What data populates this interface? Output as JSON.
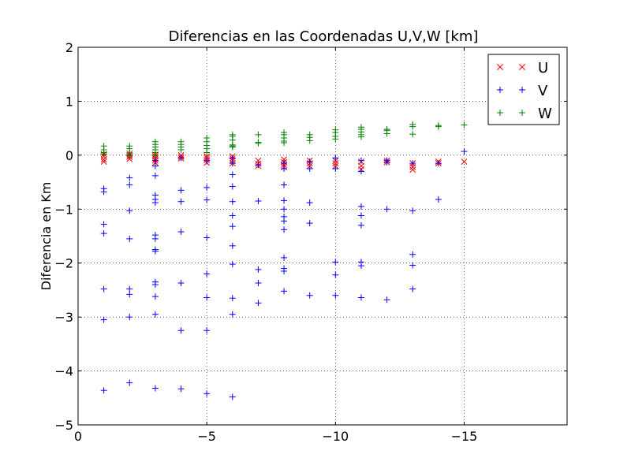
{
  "chart_data": {
    "type": "scatter",
    "title": "Diferencias en las Coordenadas U,V,W [km]",
    "xlabel": "",
    "ylabel": "Diferencia en Km",
    "xlim": [
      0,
      -19
    ],
    "ylim": [
      -5,
      2
    ],
    "xticks": [
      0,
      -5,
      -10,
      -15
    ],
    "xtick_labels": [
      "0",
      "−5",
      "−10",
      "−15"
    ],
    "yticks": [
      -5,
      -4,
      -3,
      -2,
      -1,
      0,
      1,
      2
    ],
    "ytick_labels": [
      "−5",
      "−4",
      "−3",
      "−2",
      "−1",
      "0",
      "1",
      "2"
    ],
    "grid": true,
    "legend_position": "top-right",
    "series": [
      {
        "name": "U",
        "marker": "x",
        "color": "#ff0000",
        "points": [
          [
            -1,
            -0.02
          ],
          [
            -1,
            -0.08
          ],
          [
            -1,
            -0.12
          ],
          [
            -1,
            0.02
          ],
          [
            -2,
            -0.03
          ],
          [
            -2,
            -0.07
          ],
          [
            -2,
            0.03
          ],
          [
            -2,
            0.0
          ],
          [
            -3,
            -0.02
          ],
          [
            -3,
            -0.06
          ],
          [
            -3,
            -0.1
          ],
          [
            -3,
            -0.14
          ],
          [
            -3,
            0.01
          ],
          [
            -4,
            -0.03
          ],
          [
            -4,
            -0.06
          ],
          [
            -4,
            0.0
          ],
          [
            -5,
            -0.05
          ],
          [
            -5,
            -0.09
          ],
          [
            -5,
            -0.14
          ],
          [
            -5,
            -0.02
          ],
          [
            -6,
            -0.06
          ],
          [
            -6,
            -0.1
          ],
          [
            -6,
            -0.15
          ],
          [
            -6,
            -0.02
          ],
          [
            -7,
            -0.1
          ],
          [
            -7,
            -0.16
          ],
          [
            -7,
            -0.2
          ],
          [
            -8,
            -0.08
          ],
          [
            -8,
            -0.13
          ],
          [
            -8,
            -0.18
          ],
          [
            -8,
            -0.22
          ],
          [
            -9,
            -0.1
          ],
          [
            -9,
            -0.15
          ],
          [
            -9,
            -0.2
          ],
          [
            -10,
            -0.1
          ],
          [
            -10,
            -0.15
          ],
          [
            -10,
            -0.2
          ],
          [
            -11,
            -0.12
          ],
          [
            -11,
            -0.2
          ],
          [
            -11,
            -0.26
          ],
          [
            -12,
            -0.1
          ],
          [
            -12,
            -0.13
          ],
          [
            -13,
            -0.15
          ],
          [
            -13,
            -0.22
          ],
          [
            -13,
            -0.27
          ],
          [
            -14,
            -0.12
          ],
          [
            -14,
            -0.15
          ],
          [
            -15,
            -0.12
          ]
        ]
      },
      {
        "name": "V",
        "marker": "+",
        "color": "#0000ff",
        "points": [
          [
            -1,
            -0.62
          ],
          [
            -1,
            -0.68
          ],
          [
            -1,
            -1.28
          ],
          [
            -1,
            -1.45
          ],
          [
            -1,
            -2.48
          ],
          [
            -1,
            -3.05
          ],
          [
            -1,
            -4.36
          ],
          [
            -1,
            0.02
          ],
          [
            -2,
            -0.42
          ],
          [
            -2,
            -0.55
          ],
          [
            -2,
            -1.03
          ],
          [
            -2,
            -1.55
          ],
          [
            -2,
            -2.48
          ],
          [
            -2,
            -2.58
          ],
          [
            -2,
            -3.0
          ],
          [
            -2,
            -4.22
          ],
          [
            -2,
            0.0
          ],
          [
            -3,
            -0.38
          ],
          [
            -3,
            -0.74
          ],
          [
            -3,
            -0.82
          ],
          [
            -3,
            -0.88
          ],
          [
            -3,
            -1.48
          ],
          [
            -3,
            -1.55
          ],
          [
            -3,
            -1.75
          ],
          [
            -3,
            -1.78
          ],
          [
            -3,
            -2.35
          ],
          [
            -3,
            -2.4
          ],
          [
            -3,
            -2.62
          ],
          [
            -3,
            -2.95
          ],
          [
            -3,
            -4.32
          ],
          [
            -3,
            -0.1
          ],
          [
            -3,
            -0.2
          ],
          [
            -4,
            -0.65
          ],
          [
            -4,
            -0.86
          ],
          [
            -4,
            -1.42
          ],
          [
            -4,
            -2.37
          ],
          [
            -4,
            -3.25
          ],
          [
            -4,
            -4.33
          ],
          [
            -4,
            -0.05
          ],
          [
            -5,
            -0.6
          ],
          [
            -5,
            -0.83
          ],
          [
            -5,
            -1.53
          ],
          [
            -5,
            -2.2
          ],
          [
            -5,
            -2.64
          ],
          [
            -5,
            -3.25
          ],
          [
            -5,
            -4.42
          ],
          [
            -5,
            -0.1
          ],
          [
            -6,
            -0.36
          ],
          [
            -6,
            -0.58
          ],
          [
            -6,
            -0.86
          ],
          [
            -6,
            -1.12
          ],
          [
            -6,
            -1.32
          ],
          [
            -6,
            -1.68
          ],
          [
            -6,
            -2.02
          ],
          [
            -6,
            -2.65
          ],
          [
            -6,
            -2.95
          ],
          [
            -6,
            -4.48
          ],
          [
            -6,
            -0.15
          ],
          [
            -6,
            -0.05
          ],
          [
            -7,
            -0.18
          ],
          [
            -7,
            -0.85
          ],
          [
            -7,
            -2.12
          ],
          [
            -7,
            -2.37
          ],
          [
            -7,
            -2.74
          ],
          [
            -8,
            -0.25
          ],
          [
            -8,
            -0.55
          ],
          [
            -8,
            -0.84
          ],
          [
            -8,
            -1.0
          ],
          [
            -8,
            -1.14
          ],
          [
            -8,
            -1.22
          ],
          [
            -8,
            -1.38
          ],
          [
            -8,
            -1.9
          ],
          [
            -8,
            -2.1
          ],
          [
            -8,
            -2.15
          ],
          [
            -8,
            -2.52
          ],
          [
            -8,
            -0.15
          ],
          [
            -9,
            -0.25
          ],
          [
            -9,
            -0.88
          ],
          [
            -9,
            -1.26
          ],
          [
            -9,
            -2.6
          ],
          [
            -9,
            -0.12
          ],
          [
            -10,
            -0.05
          ],
          [
            -10,
            -0.25
          ],
          [
            -10,
            -1.98
          ],
          [
            -10,
            -2.22
          ],
          [
            -10,
            -2.6
          ],
          [
            -11,
            -0.1
          ],
          [
            -11,
            -0.3
          ],
          [
            -11,
            -0.95
          ],
          [
            -11,
            -1.12
          ],
          [
            -11,
            -1.3
          ],
          [
            -11,
            -1.98
          ],
          [
            -11,
            -2.05
          ],
          [
            -11,
            -2.64
          ],
          [
            -12,
            -0.1
          ],
          [
            -12,
            -0.13
          ],
          [
            -12,
            -1.0
          ],
          [
            -12,
            -2.68
          ],
          [
            -13,
            -0.15
          ],
          [
            -13,
            -1.03
          ],
          [
            -13,
            -1.84
          ],
          [
            -13,
            -2.04
          ],
          [
            -13,
            -2.48
          ],
          [
            -14,
            -0.15
          ],
          [
            -14,
            -0.82
          ],
          [
            -15,
            0.07
          ]
        ]
      },
      {
        "name": "W",
        "marker": "+",
        "color": "#008000",
        "points": [
          [
            -1,
            0.02
          ],
          [
            -1,
            0.05
          ],
          [
            -1,
            0.1
          ],
          [
            -1,
            0.17
          ],
          [
            -2,
            0.0
          ],
          [
            -2,
            0.04
          ],
          [
            -2,
            0.12
          ],
          [
            -2,
            0.17
          ],
          [
            -3,
            0.0
          ],
          [
            -3,
            0.05
          ],
          [
            -3,
            0.1
          ],
          [
            -3,
            0.15
          ],
          [
            -3,
            0.2
          ],
          [
            -3,
            0.25
          ],
          [
            -4,
            0.1
          ],
          [
            -4,
            0.15
          ],
          [
            -4,
            0.2
          ],
          [
            -4,
            0.25
          ],
          [
            -5,
            0.05
          ],
          [
            -5,
            0.12
          ],
          [
            -5,
            0.18
          ],
          [
            -5,
            0.25
          ],
          [
            -5,
            0.32
          ],
          [
            -6,
            0.15
          ],
          [
            -6,
            0.17
          ],
          [
            -6,
            0.19
          ],
          [
            -6,
            0.28
          ],
          [
            -6,
            0.35
          ],
          [
            -6,
            0.38
          ],
          [
            -7,
            0.22
          ],
          [
            -7,
            0.24
          ],
          [
            -7,
            0.38
          ],
          [
            -8,
            0.23
          ],
          [
            -8,
            0.26
          ],
          [
            -8,
            0.32
          ],
          [
            -8,
            0.38
          ],
          [
            -8,
            0.42
          ],
          [
            -9,
            0.27
          ],
          [
            -9,
            0.33
          ],
          [
            -9,
            0.38
          ],
          [
            -10,
            0.3
          ],
          [
            -10,
            0.35
          ],
          [
            -10,
            0.42
          ],
          [
            -10,
            0.47
          ],
          [
            -11,
            0.34
          ],
          [
            -11,
            0.38
          ],
          [
            -11,
            0.43
          ],
          [
            -11,
            0.48
          ],
          [
            -11,
            0.52
          ],
          [
            -12,
            0.4
          ],
          [
            -12,
            0.46
          ],
          [
            -12,
            0.48
          ],
          [
            -13,
            0.39
          ],
          [
            -13,
            0.53
          ],
          [
            -13,
            0.57
          ],
          [
            -14,
            0.53
          ],
          [
            -14,
            0.55
          ],
          [
            -15,
            0.56
          ]
        ]
      }
    ]
  }
}
